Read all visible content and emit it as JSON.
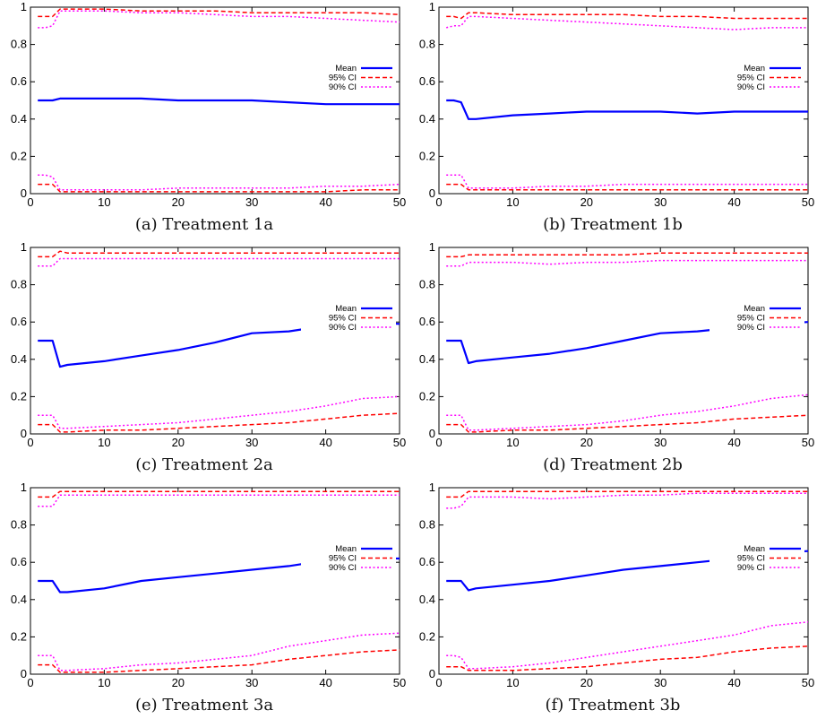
{
  "figure": {
    "legend": {
      "position": "center-right",
      "entries": [
        {
          "label": "Mean",
          "color": "#0000ff",
          "style": "solid"
        },
        {
          "label": "95% CI",
          "color": "#ff0000",
          "style": "dashed"
        },
        {
          "label": "90% CI",
          "color": "#ff00ff",
          "style": "dotted"
        }
      ]
    },
    "x_ticks": [
      0,
      10,
      20,
      30,
      40,
      50
    ],
    "y_ticks": [
      "0",
      "0.2",
      "0.4",
      "0.6",
      "0.8",
      "1"
    ],
    "y_tick_values": [
      0,
      0.2,
      0.4,
      0.6,
      0.8,
      1
    ]
  },
  "chart_data": [
    {
      "type": "line",
      "label": "(a)",
      "caption": "Treatment 1a",
      "xlim": [
        0,
        50
      ],
      "ylim": [
        0,
        1
      ],
      "grid": false,
      "x": [
        1,
        2,
        3,
        4,
        5,
        10,
        15,
        20,
        25,
        30,
        35,
        40,
        45,
        50
      ],
      "series": [
        {
          "name": "Mean",
          "values": [
            0.5,
            0.5,
            0.5,
            0.51,
            0.51,
            0.51,
            0.51,
            0.5,
            0.5,
            0.5,
            0.49,
            0.48,
            0.48,
            0.48
          ]
        },
        {
          "name": "95% CI upper",
          "values": [
            0.95,
            0.95,
            0.95,
            0.99,
            0.99,
            0.99,
            0.98,
            0.98,
            0.98,
            0.97,
            0.97,
            0.97,
            0.97,
            0.96
          ]
        },
        {
          "name": "95% CI lower",
          "values": [
            0.05,
            0.05,
            0.05,
            0.01,
            0.01,
            0.01,
            0.01,
            0.01,
            0.01,
            0.01,
            0.01,
            0.01,
            0.02,
            0.02
          ]
        },
        {
          "name": "90% CI upper",
          "values": [
            0.89,
            0.89,
            0.9,
            0.98,
            0.98,
            0.98,
            0.97,
            0.97,
            0.96,
            0.95,
            0.95,
            0.94,
            0.93,
            0.92
          ]
        },
        {
          "name": "90% CI lower",
          "values": [
            0.1,
            0.1,
            0.09,
            0.02,
            0.02,
            0.02,
            0.02,
            0.03,
            0.03,
            0.03,
            0.03,
            0.04,
            0.04,
            0.05
          ]
        }
      ]
    },
    {
      "type": "line",
      "label": "(b)",
      "caption": "Treatment 1b",
      "xlim": [
        0,
        50
      ],
      "ylim": [
        0,
        1
      ],
      "grid": false,
      "x": [
        1,
        2,
        3,
        4,
        5,
        10,
        15,
        20,
        25,
        30,
        35,
        40,
        45,
        50
      ],
      "series": [
        {
          "name": "Mean",
          "values": [
            0.5,
            0.5,
            0.49,
            0.4,
            0.4,
            0.42,
            0.43,
            0.44,
            0.44,
            0.44,
            0.43,
            0.44,
            0.44,
            0.44
          ]
        },
        {
          "name": "95% CI upper",
          "values": [
            0.95,
            0.95,
            0.94,
            0.97,
            0.97,
            0.96,
            0.96,
            0.96,
            0.96,
            0.95,
            0.95,
            0.94,
            0.94,
            0.94
          ]
        },
        {
          "name": "95% CI lower",
          "values": [
            0.05,
            0.05,
            0.05,
            0.02,
            0.02,
            0.02,
            0.02,
            0.02,
            0.02,
            0.02,
            0.02,
            0.02,
            0.02,
            0.02
          ]
        },
        {
          "name": "90% CI upper",
          "values": [
            0.89,
            0.9,
            0.9,
            0.95,
            0.95,
            0.94,
            0.93,
            0.92,
            0.91,
            0.9,
            0.89,
            0.88,
            0.89,
            0.89
          ]
        },
        {
          "name": "90% CI lower",
          "values": [
            0.1,
            0.1,
            0.1,
            0.03,
            0.03,
            0.03,
            0.04,
            0.04,
            0.05,
            0.05,
            0.05,
            0.05,
            0.05,
            0.05
          ]
        }
      ]
    },
    {
      "type": "line",
      "label": "(c)",
      "caption": "Treatment 2a",
      "xlim": [
        0,
        50
      ],
      "ylim": [
        0,
        1
      ],
      "grid": false,
      "x": [
        1,
        2,
        3,
        4,
        5,
        10,
        15,
        20,
        25,
        30,
        35,
        40,
        45,
        50
      ],
      "series": [
        {
          "name": "Mean",
          "values": [
            0.5,
            0.5,
            0.5,
            0.36,
            0.37,
            0.39,
            0.42,
            0.45,
            0.49,
            0.54,
            0.55,
            0.58,
            0.6,
            0.59
          ]
        },
        {
          "name": "95% CI upper",
          "values": [
            0.95,
            0.95,
            0.95,
            0.98,
            0.97,
            0.97,
            0.97,
            0.97,
            0.97,
            0.97,
            0.97,
            0.97,
            0.97,
            0.97
          ]
        },
        {
          "name": "95% CI lower",
          "values": [
            0.05,
            0.05,
            0.05,
            0.01,
            0.01,
            0.02,
            0.02,
            0.03,
            0.04,
            0.05,
            0.06,
            0.08,
            0.1,
            0.11
          ]
        },
        {
          "name": "90% CI upper",
          "values": [
            0.9,
            0.9,
            0.9,
            0.94,
            0.94,
            0.94,
            0.94,
            0.94,
            0.94,
            0.94,
            0.94,
            0.94,
            0.94,
            0.94
          ]
        },
        {
          "name": "90% CI lower",
          "values": [
            0.1,
            0.1,
            0.1,
            0.03,
            0.03,
            0.04,
            0.05,
            0.06,
            0.08,
            0.1,
            0.12,
            0.15,
            0.19,
            0.2
          ]
        }
      ]
    },
    {
      "type": "line",
      "label": "(d)",
      "caption": "Treatment 2b",
      "xlim": [
        0,
        50
      ],
      "ylim": [
        0,
        1
      ],
      "grid": false,
      "x": [
        1,
        2,
        3,
        4,
        5,
        10,
        15,
        20,
        25,
        30,
        35,
        40,
        45,
        50
      ],
      "series": [
        {
          "name": "Mean",
          "values": [
            0.5,
            0.5,
            0.5,
            0.38,
            0.39,
            0.41,
            0.43,
            0.46,
            0.5,
            0.54,
            0.55,
            0.57,
            0.59,
            0.6
          ]
        },
        {
          "name": "95% CI upper",
          "values": [
            0.95,
            0.95,
            0.95,
            0.96,
            0.96,
            0.96,
            0.96,
            0.96,
            0.96,
            0.97,
            0.97,
            0.97,
            0.97,
            0.97
          ]
        },
        {
          "name": "95% CI lower",
          "values": [
            0.05,
            0.05,
            0.05,
            0.01,
            0.01,
            0.02,
            0.02,
            0.03,
            0.04,
            0.05,
            0.06,
            0.08,
            0.09,
            0.1
          ]
        },
        {
          "name": "90% CI upper",
          "values": [
            0.9,
            0.9,
            0.9,
            0.92,
            0.92,
            0.92,
            0.91,
            0.92,
            0.92,
            0.93,
            0.93,
            0.93,
            0.93,
            0.93
          ]
        },
        {
          "name": "90% CI lower",
          "values": [
            0.1,
            0.1,
            0.1,
            0.02,
            0.02,
            0.03,
            0.04,
            0.05,
            0.07,
            0.1,
            0.12,
            0.15,
            0.19,
            0.21
          ]
        }
      ]
    },
    {
      "type": "line",
      "label": "(e)",
      "caption": "Treatment 3a",
      "xlim": [
        0,
        50
      ],
      "ylim": [
        0,
        1
      ],
      "grid": false,
      "x": [
        1,
        2,
        3,
        4,
        5,
        10,
        15,
        20,
        25,
        30,
        35,
        40,
        45,
        50
      ],
      "series": [
        {
          "name": "Mean",
          "values": [
            0.5,
            0.5,
            0.5,
            0.44,
            0.44,
            0.46,
            0.5,
            0.52,
            0.54,
            0.56,
            0.58,
            0.61,
            0.62,
            0.62
          ]
        },
        {
          "name": "95% CI upper",
          "values": [
            0.95,
            0.95,
            0.95,
            0.98,
            0.98,
            0.98,
            0.98,
            0.98,
            0.98,
            0.98,
            0.98,
            0.98,
            0.98,
            0.98
          ]
        },
        {
          "name": "95% CI lower",
          "values": [
            0.05,
            0.05,
            0.05,
            0.01,
            0.01,
            0.01,
            0.02,
            0.03,
            0.04,
            0.05,
            0.08,
            0.1,
            0.12,
            0.13
          ]
        },
        {
          "name": "90% CI upper",
          "values": [
            0.9,
            0.9,
            0.9,
            0.96,
            0.96,
            0.96,
            0.96,
            0.96,
            0.96,
            0.96,
            0.96,
            0.96,
            0.96,
            0.96
          ]
        },
        {
          "name": "90% CI lower",
          "values": [
            0.1,
            0.1,
            0.1,
            0.02,
            0.02,
            0.03,
            0.05,
            0.06,
            0.08,
            0.1,
            0.15,
            0.18,
            0.21,
            0.22
          ]
        }
      ]
    },
    {
      "type": "line",
      "label": "(f)",
      "caption": "Treatment 3b",
      "xlim": [
        0,
        50
      ],
      "ylim": [
        0,
        1
      ],
      "grid": false,
      "x": [
        1,
        2,
        3,
        4,
        5,
        10,
        15,
        20,
        25,
        30,
        35,
        40,
        45,
        50
      ],
      "series": [
        {
          "name": "Mean",
          "values": [
            0.5,
            0.5,
            0.5,
            0.45,
            0.46,
            0.48,
            0.5,
            0.53,
            0.56,
            0.58,
            0.6,
            0.62,
            0.65,
            0.66
          ]
        },
        {
          "name": "95% CI upper",
          "values": [
            0.95,
            0.95,
            0.95,
            0.98,
            0.98,
            0.98,
            0.98,
            0.98,
            0.98,
            0.98,
            0.98,
            0.98,
            0.98,
            0.98
          ]
        },
        {
          "name": "95% CI lower",
          "values": [
            0.04,
            0.04,
            0.04,
            0.02,
            0.02,
            0.02,
            0.03,
            0.04,
            0.06,
            0.08,
            0.09,
            0.12,
            0.14,
            0.15
          ]
        },
        {
          "name": "90% CI upper",
          "values": [
            0.89,
            0.89,
            0.9,
            0.95,
            0.95,
            0.95,
            0.94,
            0.95,
            0.96,
            0.96,
            0.97,
            0.97,
            0.97,
            0.97
          ]
        },
        {
          "name": "90% CI lower",
          "values": [
            0.1,
            0.1,
            0.09,
            0.03,
            0.03,
            0.04,
            0.06,
            0.09,
            0.12,
            0.15,
            0.18,
            0.21,
            0.26,
            0.28
          ]
        }
      ]
    }
  ]
}
